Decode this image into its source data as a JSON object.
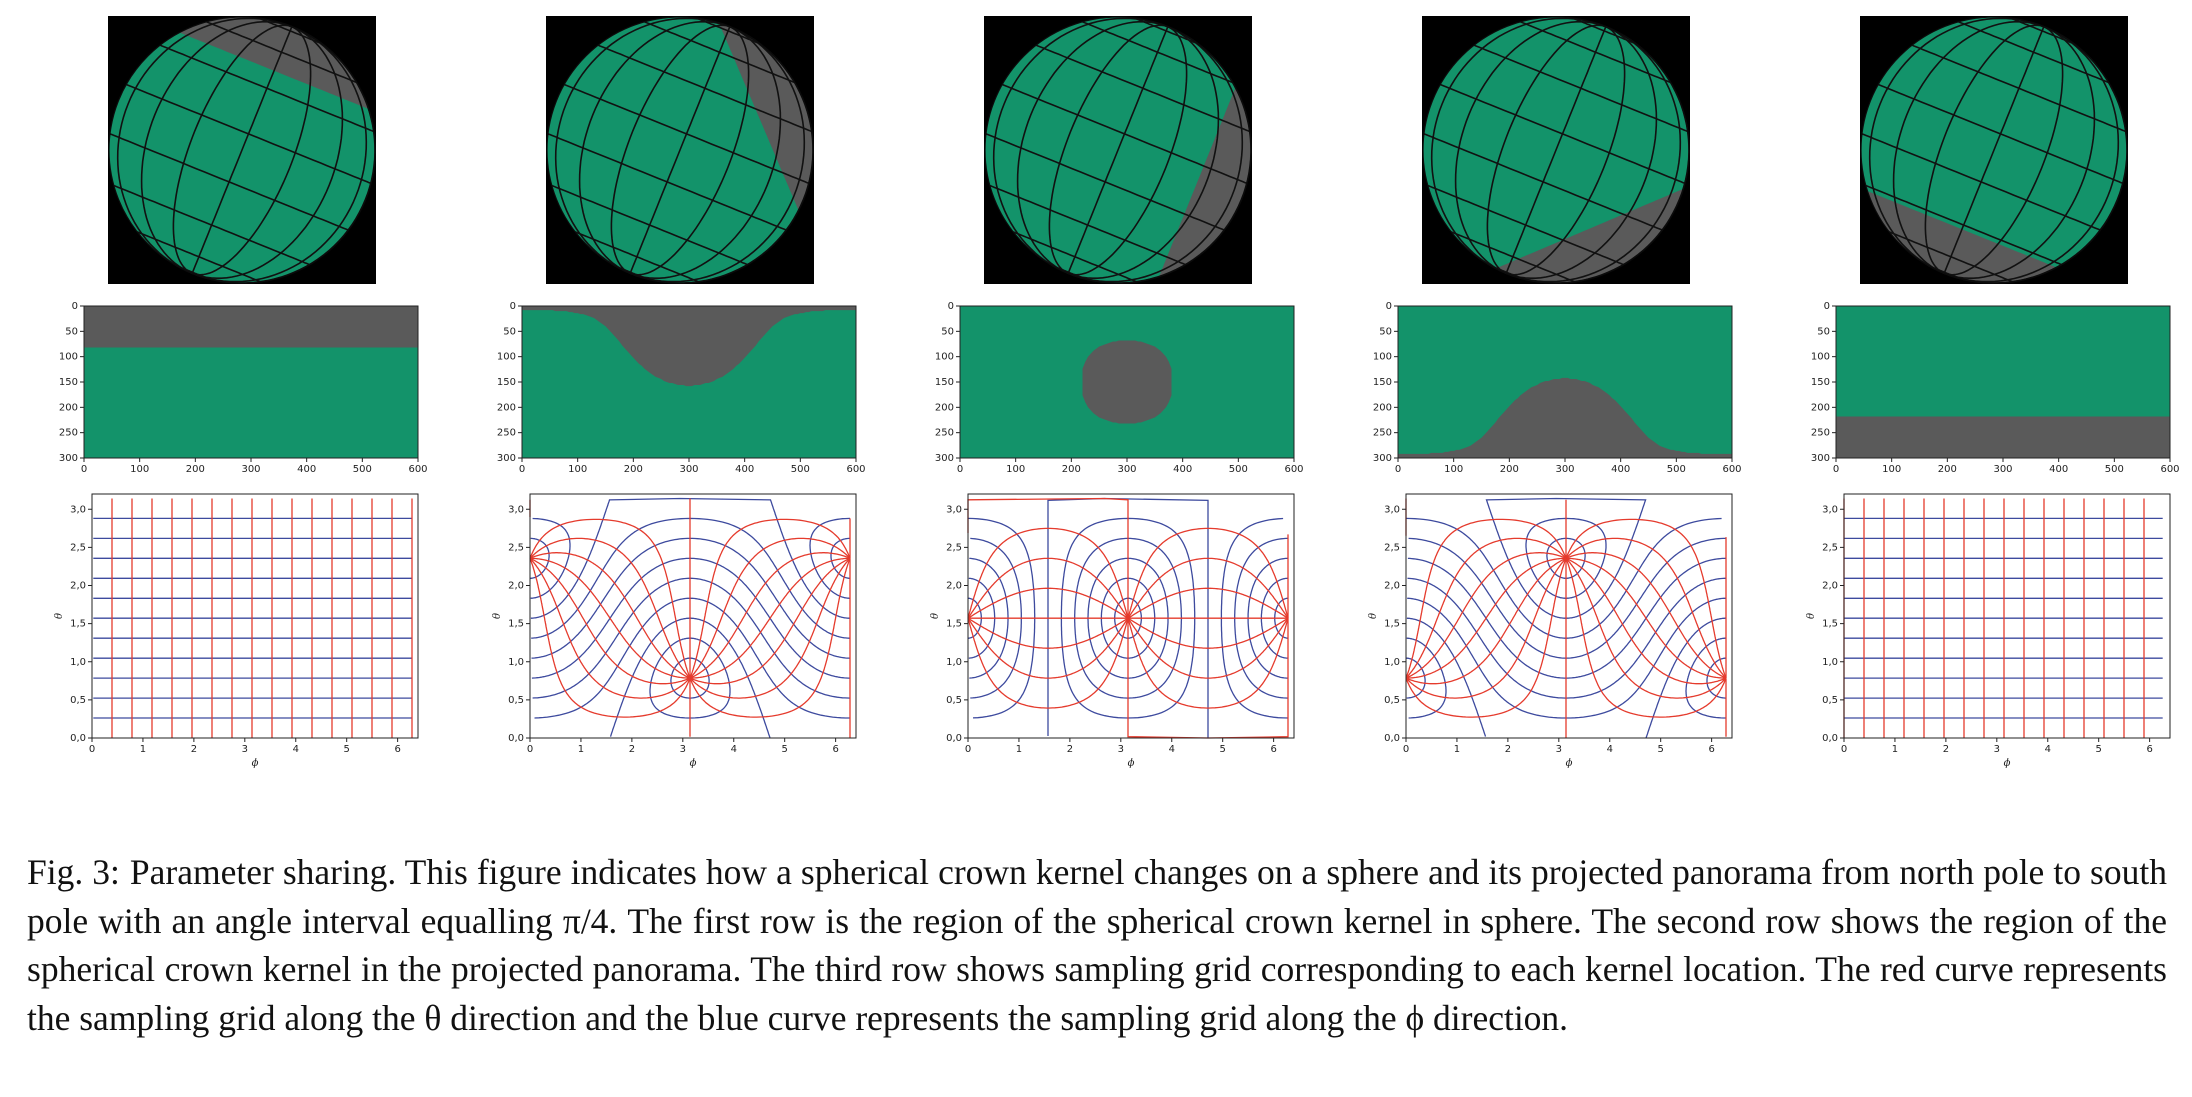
{
  "figure": {
    "sphere_row": {
      "background_color": "#000000",
      "sphere_color": "#13936a",
      "kernel_color": "#5a5a5a",
      "grid_line_color": "#111111",
      "kernel_center_polar_angles_deg": [
        0,
        45,
        90,
        135,
        180
      ],
      "panels": 5
    },
    "panorama_row": {
      "kernel_color": "#5a5a5a",
      "sphere_color": "#13936a",
      "x_ticks": [
        "0",
        "100",
        "200",
        "300",
        "400",
        "500",
        "600"
      ],
      "y_ticks": [
        "0",
        "50",
        "100",
        "150",
        "200",
        "250",
        "300"
      ],
      "kernel_center_polar_angles_deg": [
        0,
        45,
        90,
        135,
        180
      ],
      "panels": 5
    },
    "grid_row": {
      "theta_curve_color": "#e53b2d",
      "phi_curve_color": "#3d4a9e",
      "x_ticks": [
        "0",
        "1",
        "2",
        "3",
        "4",
        "5",
        "6"
      ],
      "y_ticks": [
        "0,0",
        "0,5",
        "1,0",
        "1,5",
        "2,0",
        "2,5",
        "3,0"
      ],
      "xlabel": "ϕ",
      "ylabel": "θ",
      "kernel_center_polar_angles_deg": [
        0,
        45,
        90,
        135,
        180
      ],
      "panels": 5
    }
  },
  "caption": {
    "label": "Fig. 3:",
    "text": "Parameter sharing. This figure indicates how a spherical crown kernel changes on a sphere and its projected panorama from north pole to south pole with an angle interval equalling π/4. The first row is the region of the spherical crown kernel in sphere. The second row shows the region of the spherical crown kernel in the projected panorama. The third row shows sampling grid corresponding to each kernel location. The red curve represents the sampling grid along the θ direction and the blue curve represents the sampling grid along the ϕ direction."
  }
}
